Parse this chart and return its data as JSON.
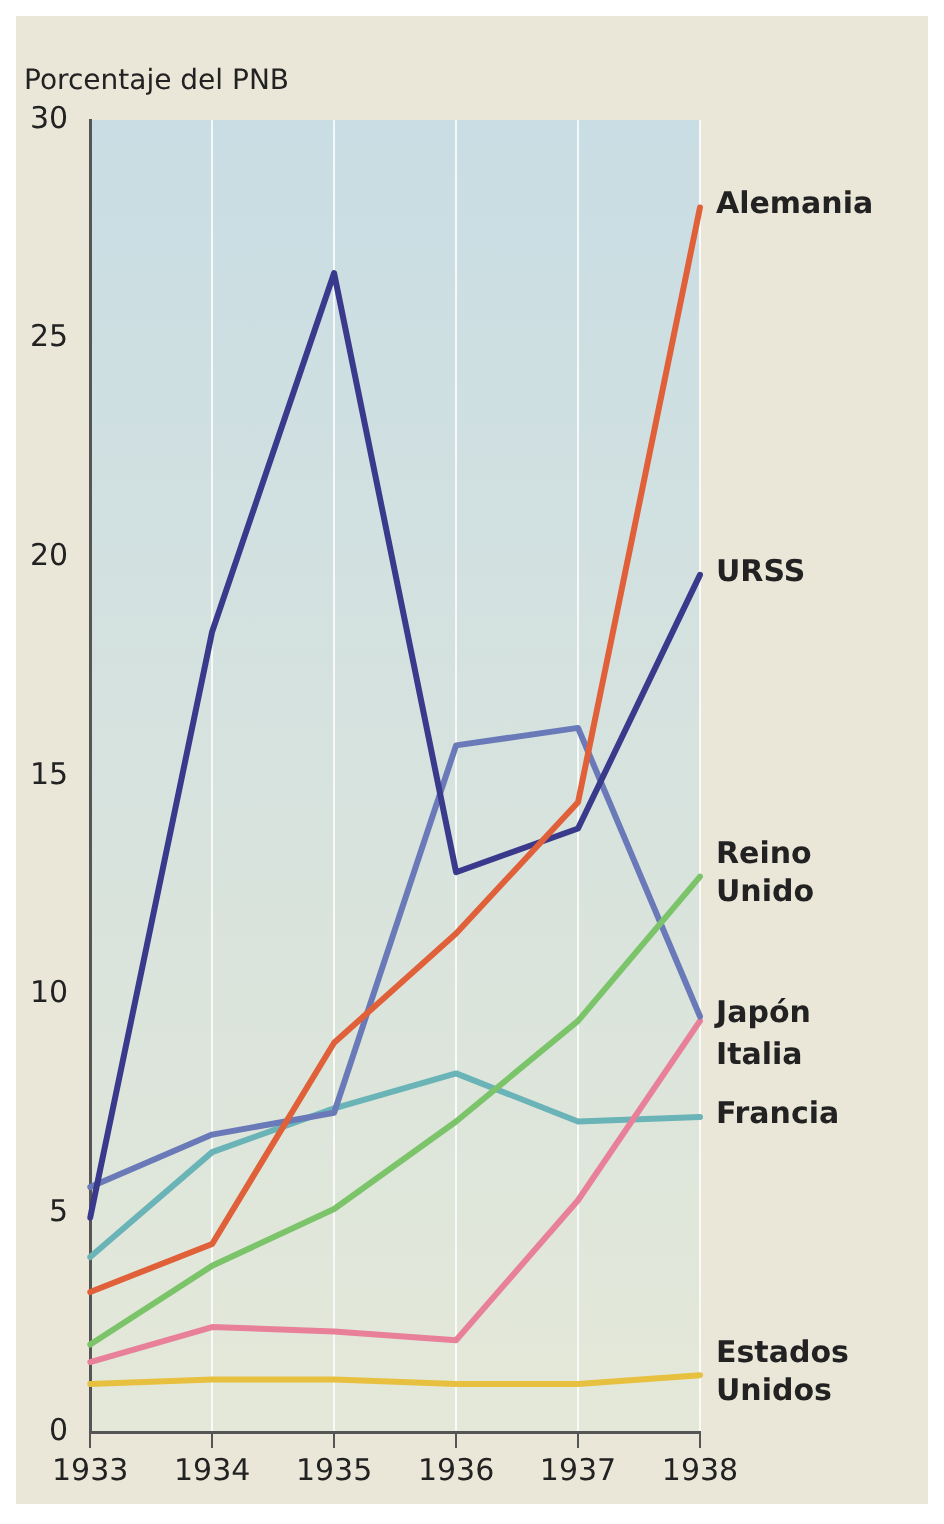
{
  "chart_data": {
    "type": "line",
    "ylabel": "Porcentaje del PNB",
    "categories": [
      "1933",
      "1934",
      "1935",
      "1936",
      "1937",
      "1938"
    ],
    "ylim": [
      0,
      30
    ],
    "yticks": [
      0,
      5,
      10,
      15,
      20,
      25,
      30
    ],
    "grid": "x",
    "legend": false,
    "marker": "none",
    "line_style": "solid",
    "series": [
      {
        "name": "Alemania",
        "color": "#e0603a",
        "values": [
          3.2,
          4.3,
          8.9,
          11.4,
          14.4,
          28.0
        ]
      },
      {
        "name": "URSS",
        "color": "#3a3a8c",
        "values": [
          4.9,
          18.3,
          26.5,
          12.8,
          13.8,
          19.6
        ]
      },
      {
        "name": "Reino Unido",
        "color": "#7cc46a",
        "values": [
          2.0,
          3.8,
          5.1,
          7.1,
          9.4,
          12.7
        ]
      },
      {
        "name": "Japón",
        "color": "#6a7ab8",
        "values": [
          5.6,
          6.8,
          7.3,
          15.7,
          16.1,
          9.5
        ]
      },
      {
        "name": "Italia",
        "color": "#e8809a",
        "values": [
          1.6,
          2.4,
          2.3,
          2.1,
          5.3,
          9.4
        ]
      },
      {
        "name": "Francia",
        "color": "#6ab4b8",
        "values": [
          4.0,
          6.4,
          7.4,
          8.2,
          7.1,
          7.2
        ]
      },
      {
        "name": "Estados Unidos",
        "color": "#e8c040",
        "values": [
          1.1,
          1.2,
          1.2,
          1.1,
          1.1,
          1.3
        ]
      }
    ]
  }
}
